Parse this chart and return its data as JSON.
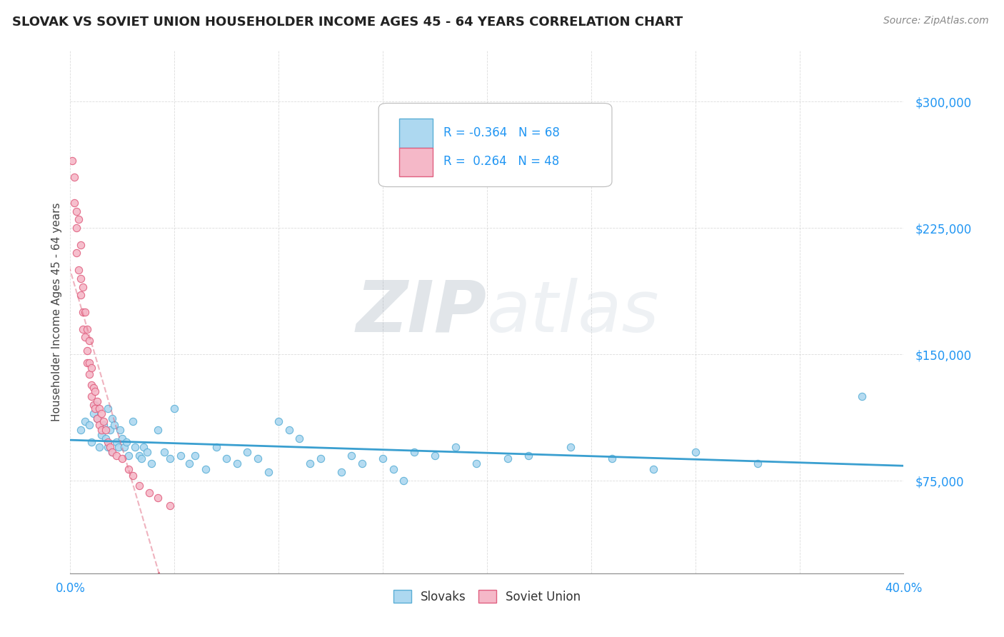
{
  "title": "SLOVAK VS SOVIET UNION HOUSEHOLDER INCOME AGES 45 - 64 YEARS CORRELATION CHART",
  "source": "Source: ZipAtlas.com",
  "ylabel_text": "Householder Income Ages 45 - 64 years",
  "xmin": 0.0,
  "xmax": 0.4,
  "ymin": 20000,
  "ymax": 330000,
  "yticks": [
    75000,
    150000,
    225000,
    300000
  ],
  "ytick_labels": [
    "$75,000",
    "$150,000",
    "$225,000",
    "$300,000"
  ],
  "xticks": [
    0.0,
    0.05,
    0.1,
    0.15,
    0.2,
    0.25,
    0.3,
    0.35,
    0.4
  ],
  "xtick_labels": [
    "0.0%",
    "",
    "",
    "",
    "",
    "",
    "",
    "",
    "40.0%"
  ],
  "slovak_color": "#ADD8F0",
  "soviet_color": "#F5B8C8",
  "slovak_edge_color": "#5BAFD6",
  "soviet_edge_color": "#E06080",
  "slovak_line_color": "#3A9FD0",
  "soviet_line_color": "#E06880",
  "watermark_zip": "ZIP",
  "watermark_atlas": "atlas",
  "slovaks_x": [
    0.005,
    0.007,
    0.009,
    0.01,
    0.011,
    0.012,
    0.013,
    0.014,
    0.015,
    0.016,
    0.017,
    0.018,
    0.018,
    0.019,
    0.02,
    0.02,
    0.021,
    0.022,
    0.023,
    0.024,
    0.025,
    0.026,
    0.027,
    0.028,
    0.03,
    0.031,
    0.033,
    0.034,
    0.035,
    0.037,
    0.039,
    0.042,
    0.045,
    0.048,
    0.05,
    0.053,
    0.057,
    0.06,
    0.065,
    0.07,
    0.075,
    0.08,
    0.085,
    0.09,
    0.095,
    0.1,
    0.105,
    0.11,
    0.115,
    0.12,
    0.13,
    0.135,
    0.14,
    0.15,
    0.155,
    0.16,
    0.165,
    0.175,
    0.185,
    0.195,
    0.21,
    0.22,
    0.24,
    0.26,
    0.28,
    0.3,
    0.33,
    0.38
  ],
  "slovaks_y": [
    105000,
    110000,
    108000,
    98000,
    115000,
    120000,
    112000,
    95000,
    102000,
    108000,
    100000,
    118000,
    95000,
    105000,
    112000,
    92000,
    108000,
    98000,
    95000,
    105000,
    100000,
    95000,
    98000,
    90000,
    110000,
    95000,
    90000,
    88000,
    95000,
    92000,
    85000,
    105000,
    92000,
    88000,
    118000,
    90000,
    85000,
    90000,
    82000,
    95000,
    88000,
    85000,
    92000,
    88000,
    80000,
    110000,
    105000,
    100000,
    85000,
    88000,
    80000,
    90000,
    85000,
    88000,
    82000,
    75000,
    92000,
    90000,
    95000,
    85000,
    88000,
    90000,
    95000,
    88000,
    82000,
    92000,
    85000,
    125000
  ],
  "soviet_x": [
    0.001,
    0.002,
    0.002,
    0.003,
    0.003,
    0.003,
    0.004,
    0.004,
    0.005,
    0.005,
    0.005,
    0.006,
    0.006,
    0.006,
    0.007,
    0.007,
    0.008,
    0.008,
    0.008,
    0.009,
    0.009,
    0.009,
    0.01,
    0.01,
    0.01,
    0.011,
    0.011,
    0.012,
    0.012,
    0.013,
    0.013,
    0.014,
    0.014,
    0.015,
    0.015,
    0.016,
    0.017,
    0.018,
    0.019,
    0.02,
    0.022,
    0.025,
    0.028,
    0.03,
    0.033,
    0.038,
    0.042,
    0.048
  ],
  "soviet_y": [
    265000,
    255000,
    240000,
    235000,
    225000,
    210000,
    230000,
    200000,
    195000,
    215000,
    185000,
    190000,
    175000,
    165000,
    175000,
    160000,
    165000,
    152000,
    145000,
    158000,
    145000,
    138000,
    142000,
    132000,
    125000,
    130000,
    120000,
    128000,
    118000,
    122000,
    112000,
    118000,
    108000,
    115000,
    105000,
    110000,
    105000,
    98000,
    95000,
    92000,
    90000,
    88000,
    82000,
    78000,
    72000,
    68000,
    65000,
    60000
  ]
}
